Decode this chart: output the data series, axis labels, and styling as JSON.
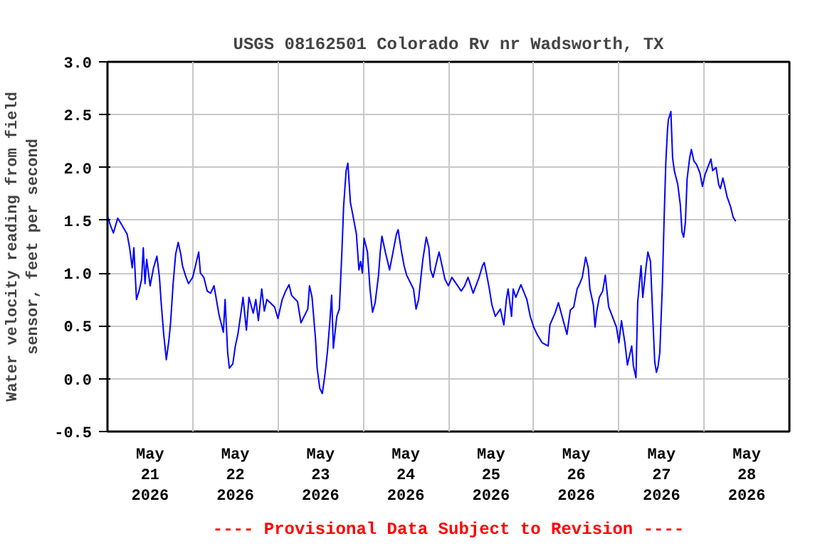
{
  "chart_data": {
    "type": "line",
    "title": "USGS 08162501 Colorado Rv nr Wadsworth, TX",
    "ylabel": "Water velocity reading from field\nsensor, feet per second",
    "annotations": [
      "---- Provisional Data Subject to Revision ----"
    ],
    "xlim": [
      "2026-05-21T00:00",
      "2026-05-29T00:00"
    ],
    "xticks": [
      {
        "value": "2026-05-21T12:00",
        "label": "May\n21\n2026"
      },
      {
        "value": "2026-05-22T12:00",
        "label": "May\n22\n2026"
      },
      {
        "value": "2026-05-23T12:00",
        "label": "May\n23\n2026"
      },
      {
        "value": "2026-05-24T12:00",
        "label": "May\n24\n2026"
      },
      {
        "value": "2026-05-25T12:00",
        "label": "May\n25\n2026"
      },
      {
        "value": "2026-05-26T12:00",
        "label": "May\n26\n2026"
      },
      {
        "value": "2026-05-27T12:00",
        "label": "May\n27\n2026"
      },
      {
        "value": "2026-05-28T12:00",
        "label": "May\n28\n2026"
      },
      {
        "value": "2026-05-22T00:00",
        "label": null
      },
      {
        "value": "2026-05-23T00:00",
        "label": null
      },
      {
        "value": "2026-05-24T00:00",
        "label": null
      },
      {
        "value": "2026-05-25T00:00",
        "label": null
      },
      {
        "value": "2026-05-26T00:00",
        "label": null
      },
      {
        "value": "2026-05-27T00:00",
        "label": null
      },
      {
        "value": "2026-05-28T00:00",
        "label": null
      }
    ],
    "ylim": [
      -0.5,
      3.0
    ],
    "yticks": [
      {
        "value": -0.5,
        "label": "-0.5"
      },
      {
        "value": 0,
        "label": "0.0"
      },
      {
        "value": 0.5,
        "label": "0.5"
      },
      {
        "value": 1,
        "label": "1.0"
      },
      {
        "value": 1.5,
        "label": "1.5"
      },
      {
        "value": 2,
        "label": "2.0"
      },
      {
        "value": 2.5,
        "label": "2.5"
      },
      {
        "value": 3,
        "label": "3.0"
      }
    ],
    "grid": true,
    "line_style": "solid",
    "series": [
      {
        "color": "#0000ff",
        "x": [
          "2026-05-21T00:00",
          "2026-05-21T00:45",
          "2026-05-21T01:40",
          "2026-05-21T02:53",
          "2026-05-21T03:58",
          "2026-05-21T05:31",
          "2026-05-21T06:14",
          "2026-05-21T06:58",
          "2026-05-21T07:26",
          "2026-05-21T08:10",
          "2026-05-21T08:53",
          "2026-05-21T09:36",
          "2026-05-21T10:05",
          "2026-05-21T10:34",
          "2026-05-21T11:02",
          "2026-05-21T12:00",
          "2026-05-21T12:58",
          "2026-05-21T13:55",
          "2026-05-21T14:38",
          "2026-05-21T15:07",
          "2026-05-21T15:50",
          "2026-05-21T16:34",
          "2026-05-21T17:17",
          "2026-05-21T17:46",
          "2026-05-21T18:29",
          "2026-05-21T19:12",
          "2026-05-21T19:55",
          "2026-05-21T20:38",
          "2026-05-21T21:07",
          "2026-05-21T21:50",
          "2026-05-21T22:48",
          "2026-05-22T00:00",
          "2026-05-22T01:41",
          "2026-05-22T02:10",
          "2026-05-22T03:07",
          "2026-05-22T04:05",
          "2026-05-22T05:02",
          "2026-05-22T06:00",
          "2026-05-22T07:26",
          "2026-05-22T08:38",
          "2026-05-22T09:07",
          "2026-05-22T09:50",
          "2026-05-22T10:19",
          "2026-05-22T11:17",
          "2026-05-22T12:00",
          "2026-05-22T12:43",
          "2026-05-22T13:26",
          "2026-05-22T14:10",
          "2026-05-22T15:07",
          "2026-05-22T15:50",
          "2026-05-22T17:02",
          "2026-05-22T17:46",
          "2026-05-22T18:29",
          "2026-05-22T19:26",
          "2026-05-22T20:10",
          "2026-05-22T20:53",
          "2026-05-22T23:02",
          "2026-05-23T00:00",
          "2026-05-23T01:12",
          "2026-05-23T02:10",
          "2026-05-23T03:07",
          "2026-05-23T03:50",
          "2026-05-23T05:31",
          "2026-05-23T06:29",
          "2026-05-23T08:24",
          "2026-05-23T08:53",
          "2026-05-23T09:36",
          "2026-05-23T10:34",
          "2026-05-23T11:02",
          "2026-05-23T11:46",
          "2026-05-23T12:29",
          "2026-05-23T13:12",
          "2026-05-23T13:55",
          "2026-05-23T14:38",
          "2026-05-23T15:07",
          "2026-05-23T15:36",
          "2026-05-23T16:34",
          "2026-05-23T17:17",
          "2026-05-23T18:00",
          "2026-05-23T18:29",
          "2026-05-23T19:12",
          "2026-05-23T19:41",
          "2026-05-23T20:24",
          "2026-05-23T21:22",
          "2026-05-23T22:05",
          "2026-05-23T22:48",
          "2026-05-23T23:17",
          "2026-05-23T23:46",
          "2026-05-24T00:14",
          "2026-05-24T01:12",
          "2026-05-24T01:55",
          "2026-05-24T02:38",
          "2026-05-24T03:22",
          "2026-05-24T04:19",
          "2026-05-24T04:48",
          "2026-05-24T05:17",
          "2026-05-24T06:14",
          "2026-05-24T07:26",
          "2026-05-24T09:22",
          "2026-05-24T09:50",
          "2026-05-24T10:48",
          "2026-05-24T11:31",
          "2026-05-24T12:14",
          "2026-05-24T14:10",
          "2026-05-24T14:53",
          "2026-05-24T15:36",
          "2026-05-24T16:19",
          "2026-05-24T16:48",
          "2026-05-24T17:46",
          "2026-05-24T18:29",
          "2026-05-24T18:58",
          "2026-05-24T19:41",
          "2026-05-24T20:38",
          "2026-05-24T21:22",
          "2026-05-24T23:02",
          "2026-05-25T00:00",
          "2026-05-25T00:58",
          "2026-05-25T03:36",
          "2026-05-25T04:34",
          "2026-05-25T05:31",
          "2026-05-25T06:58",
          "2026-05-25T08:38",
          "2026-05-25T09:36",
          "2026-05-25T10:05",
          "2026-05-25T10:48",
          "2026-05-25T11:31",
          "2026-05-25T12:14",
          "2026-05-25T13:12",
          "2026-05-25T14:38",
          "2026-05-25T15:36",
          "2026-05-25T16:19",
          "2026-05-25T16:48",
          "2026-05-25T17:46",
          "2026-05-25T18:14",
          "2026-05-25T18:58",
          "2026-05-25T20:24",
          "2026-05-25T22:05",
          "2026-05-25T23:02",
          "2026-05-26T00:00",
          "2026-05-26T00:58",
          "2026-05-26T02:24",
          "2026-05-26T04:05",
          "2026-05-26T04:34",
          "2026-05-26T06:00",
          "2026-05-26T06:58",
          "2026-05-26T09:22",
          "2026-05-26T10:19",
          "2026-05-26T11:17",
          "2026-05-26T12:14",
          "2026-05-26T12:58",
          "2026-05-26T13:41",
          "2026-05-26T14:38",
          "2026-05-26T15:22",
          "2026-05-26T15:50",
          "2026-05-26T16:48",
          "2026-05-26T17:17",
          "2026-05-26T17:46",
          "2026-05-26T18:29",
          "2026-05-26T19:26",
          "2026-05-26T20:10",
          "2026-05-26T20:38",
          "2026-05-26T21:07",
          "2026-05-26T23:17",
          "2026-05-27T00:00",
          "2026-05-27T00:43",
          "2026-05-27T01:41",
          "2026-05-27T02:24",
          "2026-05-27T03:36",
          "2026-05-27T04:05",
          "2026-05-27T04:48",
          "2026-05-27T05:17",
          "2026-05-27T06:14",
          "2026-05-27T06:43",
          "2026-05-27T07:12",
          "2026-05-27T07:41",
          "2026-05-27T08:10",
          "2026-05-27T08:53",
          "2026-05-27T09:22",
          "2026-05-27T10:05",
          "2026-05-27T10:34",
          "2026-05-27T11:02",
          "2026-05-27T11:31",
          "2026-05-27T12:14",
          "2026-05-27T12:43",
          "2026-05-27T13:12",
          "2026-05-27T13:41",
          "2026-05-27T13:55",
          "2026-05-27T14:38",
          "2026-05-27T15:07",
          "2026-05-27T15:36",
          "2026-05-27T16:34",
          "2026-05-27T17:17",
          "2026-05-27T17:46",
          "2026-05-27T18:14",
          "2026-05-27T18:43",
          "2026-05-27T19:12",
          "2026-05-27T19:55",
          "2026-05-27T20:24",
          "2026-05-27T21:07",
          "2026-05-27T21:50",
          "2026-05-27T22:48",
          "2026-05-27T23:31",
          "2026-05-28T00:14",
          "2026-05-28T01:55",
          "2026-05-28T02:24",
          "2026-05-28T03:22",
          "2026-05-28T04:05",
          "2026-05-28T04:34",
          "2026-05-28T05:17",
          "2026-05-28T06:29",
          "2026-05-28T07:26",
          "2026-05-28T08:10",
          "2026-05-28T08:53"
        ],
        "values": [
          1.54,
          1.46,
          1.38,
          1.52,
          1.46,
          1.37,
          1.24,
          1.05,
          1.24,
          0.75,
          0.83,
          0.94,
          1.24,
          0.9,
          1.13,
          0.88,
          1.05,
          1.16,
          0.96,
          0.72,
          0.42,
          0.18,
          0.36,
          0.53,
          0.9,
          1.18,
          1.29,
          1.18,
          1.07,
          0.99,
          0.9,
          0.96,
          1.2,
          1.0,
          0.96,
          0.83,
          0.81,
          0.88,
          0.6,
          0.44,
          0.75,
          0.25,
          0.1,
          0.14,
          0.31,
          0.42,
          0.59,
          0.77,
          0.46,
          0.77,
          0.62,
          0.75,
          0.55,
          0.85,
          0.64,
          0.75,
          0.68,
          0.57,
          0.75,
          0.83,
          0.89,
          0.79,
          0.73,
          0.53,
          0.66,
          0.88,
          0.77,
          0.38,
          0.1,
          -0.09,
          -0.14,
          0.03,
          0.25,
          0.55,
          0.79,
          0.29,
          0.59,
          0.66,
          1.2,
          1.63,
          1.97,
          2.04,
          1.67,
          1.5,
          1.37,
          1.03,
          1.11,
          1.0,
          1.33,
          1.2,
          0.85,
          0.63,
          0.72,
          0.98,
          1.2,
          1.35,
          1.2,
          1.03,
          1.37,
          1.41,
          1.2,
          1.07,
          0.98,
          0.85,
          0.66,
          0.75,
          0.98,
          1.13,
          1.34,
          1.24,
          1.03,
          0.96,
          1.1,
          1.2,
          0.94,
          0.88,
          0.96,
          0.83,
          0.88,
          0.96,
          0.81,
          0.96,
          1.07,
          1.1,
          0.98,
          0.85,
          0.7,
          0.59,
          0.66,
          0.51,
          0.75,
          0.85,
          0.59,
          0.85,
          0.77,
          0.89,
          0.75,
          0.59,
          0.49,
          0.42,
          0.34,
          0.31,
          0.51,
          0.62,
          0.72,
          0.42,
          0.65,
          0.68,
          0.85,
          0.9,
          0.96,
          1.15,
          1.05,
          0.85,
          0.7,
          0.49,
          0.64,
          0.77,
          0.83,
          0.98,
          0.83,
          0.68,
          0.49,
          0.34,
          0.55,
          0.34,
          0.13,
          0.31,
          0.12,
          0.01,
          0.72,
          1.07,
          0.77,
          0.92,
          1.07,
          1.2,
          1.11,
          0.72,
          0.16,
          0.06,
          0.12,
          0.25,
          0.88,
          1.5,
          2.04,
          2.36,
          2.45,
          2.53,
          2.09,
          1.97,
          1.84,
          1.65,
          1.39,
          1.34,
          1.48,
          1.89,
          2.09,
          2.17,
          2.06,
          2.03,
          1.95,
          1.82,
          1.93,
          2.08,
          1.97,
          2.0,
          1.84,
          1.8,
          1.9,
          1.72,
          1.63,
          1.53,
          1.49
        ]
      }
    ]
  }
}
